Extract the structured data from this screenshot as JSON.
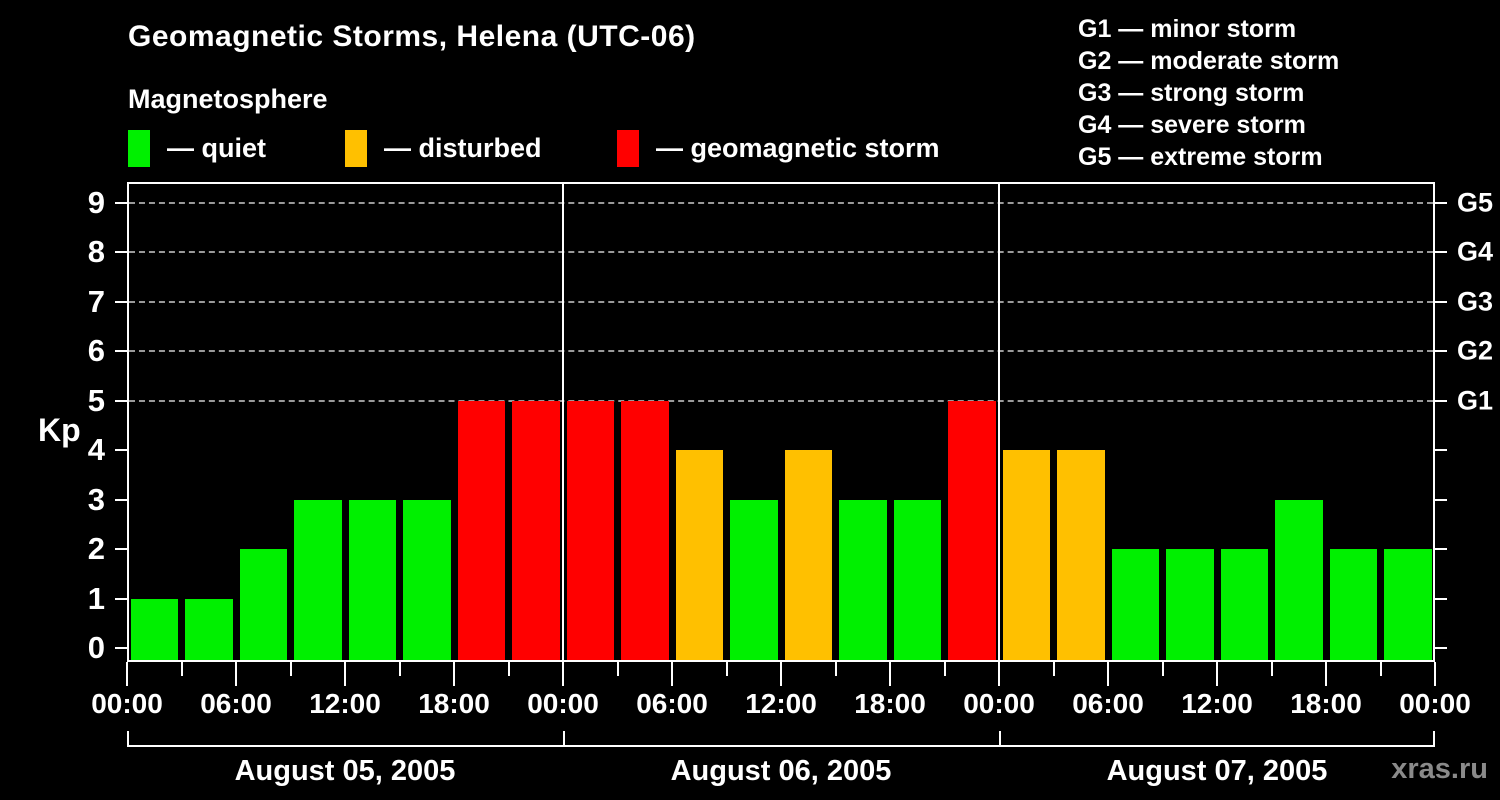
{
  "title": "Geomagnetic Storms, Helena (UTC-06)",
  "watermark": "xras.ru",
  "legend": {
    "title": "Magnetosphere",
    "items": [
      {
        "key": "quiet",
        "label": "— quiet"
      },
      {
        "key": "disturbed",
        "label": "— disturbed"
      },
      {
        "key": "storm",
        "label": "— geomagnetic storm"
      }
    ]
  },
  "storm_scale_legend": [
    "G1 — minor storm",
    "G2 — moderate storm",
    "G3 — strong storm",
    "G4 — severe storm",
    "G5 — extreme storm"
  ],
  "chart_data": {
    "type": "bar",
    "title": "Geomagnetic Storms, Helena (UTC-06)",
    "ylabel": "Kp",
    "ylim": [
      0,
      9
    ],
    "y_ticks": [
      0,
      1,
      2,
      3,
      4,
      5,
      6,
      7,
      8,
      9
    ],
    "dashed_gridlines_at": [
      5,
      6,
      7,
      8,
      9
    ],
    "right_axis_labels": [
      {
        "value": 5,
        "label": "G1"
      },
      {
        "value": 6,
        "label": "G2"
      },
      {
        "value": 7,
        "label": "G3"
      },
      {
        "value": 8,
        "label": "G4"
      },
      {
        "value": 9,
        "label": "G5"
      }
    ],
    "x_tick_labels": [
      "00:00",
      "06:00",
      "12:00",
      "18:00",
      "00:00",
      "06:00",
      "12:00",
      "18:00",
      "00:00",
      "06:00",
      "12:00",
      "18:00",
      "00:00"
    ],
    "interval_hours": 3,
    "days": [
      {
        "date": "August 05, 2005",
        "values": [
          1,
          1,
          2,
          3,
          3,
          3,
          5,
          5
        ]
      },
      {
        "date": "August 06, 2005",
        "values": [
          5,
          5,
          4,
          3,
          4,
          3,
          3,
          5
        ]
      },
      {
        "date": "August 07, 2005",
        "values": [
          4,
          4,
          2,
          2,
          2,
          3,
          2,
          2
        ]
      }
    ],
    "colors": {
      "quiet": "#00f000",
      "disturbed": "#ffc000",
      "storm": "#ff0000"
    },
    "color_rule": {
      "quiet_max": 3,
      "disturbed_value": 4,
      "storm_min": 5
    },
    "legend_position": "top-left",
    "grid": "horizontal dashed lines at storm levels only"
  }
}
